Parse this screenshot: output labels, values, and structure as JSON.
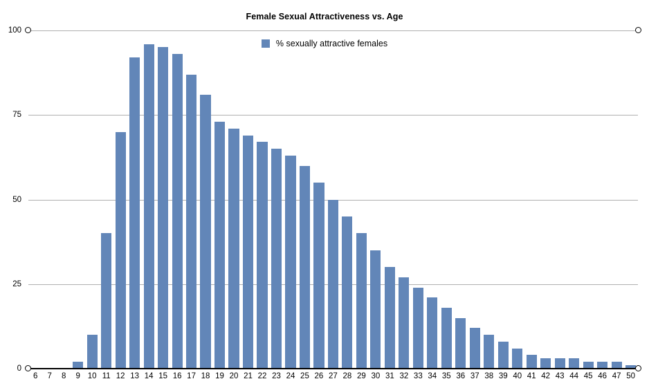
{
  "title": "Female Sexual Attractiveness vs. Age",
  "legend": {
    "label": "% sexually attractive females"
  },
  "colors": {
    "bar": "#6286B8",
    "gridline": "#b0b0b0",
    "axis": "#000000",
    "background": "#ffffff"
  },
  "chart_data": {
    "type": "bar",
    "title": "Female Sexual Attractiveness vs. Age",
    "series_name": "% sexually attractive females",
    "categories": [
      "6",
      "7",
      "8",
      "9",
      "10",
      "11",
      "12",
      "13",
      "14",
      "15",
      "16",
      "17",
      "18",
      "19",
      "20",
      "21",
      "22",
      "23",
      "24",
      "25",
      "26",
      "27",
      "28",
      "29",
      "30",
      "31",
      "32",
      "33",
      "34",
      "35",
      "36",
      "37",
      "38",
      "39",
      "40",
      "41",
      "42",
      "43",
      "44",
      "45",
      "46",
      "47",
      "50"
    ],
    "values": [
      0,
      0,
      0,
      2,
      10,
      40,
      70,
      92,
      96,
      95,
      93,
      87,
      81,
      73,
      71,
      69,
      67,
      65,
      63,
      60,
      55,
      50,
      45,
      40,
      35,
      30,
      27,
      24,
      21,
      18,
      15,
      12,
      10,
      8,
      6,
      4,
      3,
      3,
      3,
      2,
      2,
      2,
      1
    ],
    "xlabel": "",
    "ylabel": "",
    "ylim": [
      0,
      100
    ],
    "y_ticks": [
      0,
      25,
      50,
      75,
      100
    ],
    "grid": true,
    "legend_position": "top-center",
    "bar_color": "#6286B8",
    "axis_endpoint_markers": "open-circles-at-0-and-100-lines"
  }
}
